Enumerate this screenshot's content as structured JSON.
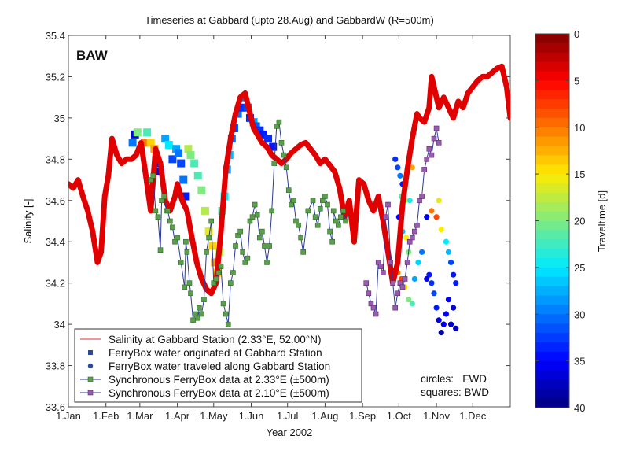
{
  "chart_data": {
    "type": "line",
    "title": "Timeseries at Gabbard (upto 28.Aug) and GabbardW (R=500m)",
    "xlabel": "Year 2002",
    "ylabel": "Salinity [-]",
    "panel_label": "BAW",
    "xlim_days": [
      0,
      365
    ],
    "ylim": [
      33.6,
      35.4
    ],
    "x_ticks": [
      {
        "day": 0,
        "label": "1.Jan"
      },
      {
        "day": 31,
        "label": "1.Feb"
      },
      {
        "day": 59,
        "label": "1.Mar"
      },
      {
        "day": 90,
        "label": "1.Apr"
      },
      {
        "day": 120,
        "label": "1.May"
      },
      {
        "day": 151,
        "label": "1.Jun"
      },
      {
        "day": 181,
        "label": "1.Jul"
      },
      {
        "day": 212,
        "label": "1.Aug"
      },
      {
        "day": 243,
        "label": "1.Sep"
      },
      {
        "day": 273,
        "label": "1.Oct"
      },
      {
        "day": 304,
        "label": "1.Nov"
      },
      {
        "day": 334,
        "label": "1.Dec"
      }
    ],
    "y_ticks": [
      "33.6",
      "33.8",
      "34",
      "34.2",
      "34.4",
      "34.6",
      "34.8",
      "35",
      "35.2",
      "35.4"
    ],
    "grid": false,
    "legend_position": "bottom-left",
    "colorbar": {
      "label": "Traveltime [d]",
      "range": [
        0,
        40
      ],
      "ticks": [
        "0",
        "5",
        "10",
        "15",
        "20",
        "25",
        "30",
        "35",
        "40"
      ],
      "colormap": "jet-reversed"
    },
    "annotations": [
      "circles:   FWD",
      "squares: BWD"
    ],
    "series": [
      {
        "name": "Salinity at Gabbard Station (2.33°E, 52.00°N)",
        "color": "#e00000",
        "style": "thick-line",
        "x": [
          0,
          4,
          8,
          12,
          16,
          20,
          24,
          27,
          30,
          33,
          36,
          40,
          44,
          48,
          52,
          56,
          60,
          64,
          68,
          72,
          76,
          80,
          84,
          88,
          90,
          94,
          98,
          102,
          106,
          110,
          114,
          118,
          122,
          126,
          130,
          134,
          138,
          142,
          146,
          150,
          153,
          156,
          160,
          164,
          168,
          172,
          176,
          180,
          184,
          188,
          192,
          196,
          200,
          204,
          208,
          212,
          216,
          220,
          224,
          228,
          232,
          236,
          240,
          244,
          248,
          252,
          256,
          260,
          264,
          268,
          272,
          276,
          280,
          284,
          288,
          290,
          294,
          298,
          300,
          304,
          306,
          310,
          314,
          318,
          322,
          326,
          330,
          334,
          338,
          342,
          346,
          350,
          354,
          358,
          362,
          365
        ],
        "y": [
          34.68,
          34.66,
          34.7,
          34.62,
          34.55,
          34.45,
          34.3,
          34.35,
          34.62,
          34.72,
          34.9,
          34.82,
          34.78,
          34.8,
          34.8,
          34.82,
          34.88,
          34.72,
          34.55,
          34.85,
          34.78,
          34.6,
          34.55,
          34.62,
          34.68,
          34.6,
          34.55,
          34.42,
          34.3,
          34.22,
          34.17,
          34.15,
          34.2,
          34.45,
          34.75,
          34.9,
          35.02,
          35.1,
          35.12,
          35.02,
          34.95,
          34.92,
          34.88,
          34.86,
          34.82,
          34.8,
          34.78,
          34.8,
          34.83,
          34.85,
          34.87,
          34.88,
          34.85,
          34.82,
          34.78,
          34.8,
          34.77,
          34.74,
          34.66,
          34.52,
          34.6,
          34.4,
          34.7,
          34.68,
          34.6,
          34.55,
          34.62,
          34.5,
          34.35,
          34.2,
          34.3,
          34.58,
          34.75,
          34.9,
          35.02,
          35.0,
          34.98,
          35.05,
          35.2,
          35.1,
          35.05,
          35.1,
          35.05,
          35.0,
          35.08,
          35.05,
          35.12,
          35.15,
          35.18,
          35.2,
          35.2,
          35.22,
          35.24,
          35.25,
          35.15,
          35.0
        ]
      },
      {
        "name": "FerryBox water originated at Gabbard Station",
        "marker": "square",
        "color_by": "traveltime",
        "points": [
          [
            53,
            34.88,
            30
          ],
          [
            55,
            34.92,
            35
          ],
          [
            57,
            34.93,
            20
          ],
          [
            63,
            34.88,
            10
          ],
          [
            65,
            34.93,
            22
          ],
          [
            68,
            34.88,
            14
          ],
          [
            71,
            34.85,
            12
          ],
          [
            74,
            34.78,
            34
          ],
          [
            76,
            34.74,
            36
          ],
          [
            80,
            34.9,
            28
          ],
          [
            83,
            34.87,
            25
          ],
          [
            86,
            34.8,
            32
          ],
          [
            89,
            34.85,
            28
          ],
          [
            91,
            34.83,
            30
          ],
          [
            93,
            34.78,
            32
          ],
          [
            95,
            34.7,
            30
          ],
          [
            97,
            34.62,
            34
          ],
          [
            99,
            34.85,
            18
          ],
          [
            101,
            34.82,
            20
          ],
          [
            104,
            34.78,
            22
          ],
          [
            107,
            34.72,
            22
          ],
          [
            110,
            34.65,
            20
          ],
          [
            113,
            34.55,
            18
          ],
          [
            116,
            34.45,
            16
          ],
          [
            119,
            34.38,
            14
          ],
          [
            121,
            34.3,
            12
          ],
          [
            123,
            34.25,
            15
          ],
          [
            125,
            34.35,
            18
          ],
          [
            127,
            34.55,
            22
          ],
          [
            129,
            34.62,
            25
          ],
          [
            131,
            34.75,
            28
          ],
          [
            133,
            34.82,
            27
          ],
          [
            135,
            34.9,
            30
          ],
          [
            137,
            34.95,
            32
          ],
          [
            140,
            35.02,
            30
          ],
          [
            142,
            35.05,
            33
          ],
          [
            145,
            35.1,
            30
          ],
          [
            148,
            35.05,
            32
          ],
          [
            150,
            35.0,
            33
          ],
          [
            153,
            34.98,
            28
          ],
          [
            155,
            34.96,
            31
          ],
          [
            158,
            34.94,
            33
          ],
          [
            161,
            34.92,
            34
          ],
          [
            165,
            34.9,
            33
          ],
          [
            169,
            34.86,
            34
          ],
          [
            200,
            33.9,
            32
          ],
          [
            202,
            33.8,
            33
          ],
          [
            204,
            33.78,
            32
          ],
          [
            206,
            33.65,
            33
          ]
        ]
      },
      {
        "name": "FerryBox water traveled along Gabbard Station",
        "marker": "circle",
        "color_by": "traveltime",
        "points": [
          [
            270,
            34.8,
            33
          ],
          [
            272,
            34.76,
            32
          ],
          [
            274,
            34.72,
            30
          ],
          [
            276,
            34.68,
            34
          ],
          [
            275,
            34.62,
            22
          ],
          [
            278,
            34.6,
            16
          ],
          [
            282,
            34.6,
            24
          ],
          [
            284,
            34.76,
            12
          ],
          [
            273,
            34.52,
            35
          ],
          [
            276,
            34.45,
            27
          ],
          [
            279,
            34.42,
            15
          ],
          [
            281,
            34.35,
            20
          ],
          [
            272,
            34.25,
            10
          ],
          [
            275,
            34.22,
            8
          ],
          [
            278,
            34.18,
            15
          ],
          [
            281,
            34.12,
            20
          ],
          [
            284,
            34.1,
            22
          ],
          [
            286,
            34.22,
            28
          ],
          [
            289,
            34.3,
            26
          ],
          [
            292,
            34.35,
            30
          ],
          [
            296,
            34.52,
            36
          ],
          [
            300,
            34.55,
            10
          ],
          [
            304,
            34.52,
            8
          ],
          [
            306,
            34.6,
            16
          ],
          [
            308,
            34.46,
            15
          ],
          [
            312,
            34.4,
            25
          ],
          [
            314,
            34.35,
            27
          ],
          [
            316,
            34.3,
            32
          ],
          [
            318,
            34.24,
            34
          ],
          [
            320,
            34.2,
            34
          ],
          [
            314,
            34.12,
            35
          ],
          [
            312,
            34.05,
            35
          ],
          [
            310,
            34.0,
            36
          ],
          [
            308,
            33.96,
            38
          ],
          [
            306,
            34.02,
            36
          ],
          [
            304,
            34.08,
            34
          ],
          [
            302,
            34.15,
            32
          ],
          [
            300,
            34.2,
            33
          ],
          [
            298,
            34.24,
            34
          ],
          [
            296,
            34.22,
            36
          ],
          [
            316,
            34.0,
            37
          ],
          [
            318,
            34.08,
            36
          ],
          [
            320,
            33.98,
            38
          ]
        ]
      },
      {
        "name": "Synchronous FerryBox data at 2.33°E (±500m)",
        "color": "#2a3a9a",
        "marker_color": "#5aa04a",
        "marker": "square",
        "x": [
          68,
          70,
          72,
          74,
          76,
          77,
          79,
          81,
          82,
          84,
          86,
          88,
          90,
          93,
          96,
          97,
          98,
          100,
          101,
          103,
          105,
          107,
          108,
          110,
          112,
          114,
          116,
          118,
          120,
          122,
          124,
          126,
          128,
          130,
          132,
          134,
          136,
          138,
          140,
          142,
          144,
          146,
          148,
          150,
          152,
          154,
          156,
          158,
          160,
          162,
          164,
          166,
          168,
          170,
          172,
          174,
          176,
          178,
          180,
          182,
          184,
          186,
          188,
          190,
          192,
          194,
          198,
          202,
          204,
          206,
          208,
          210,
          212,
          214,
          216,
          218,
          219,
          221,
          223,
          225,
          227,
          229
        ],
        "y": [
          34.7,
          34.72,
          34.55,
          34.52,
          34.36,
          34.6,
          34.62,
          34.55,
          34.55,
          34.5,
          34.47,
          34.4,
          34.42,
          34.3,
          34.18,
          34.4,
          34.35,
          34.2,
          34.15,
          34.02,
          34.05,
          34.03,
          34.08,
          34.05,
          34.12,
          34.35,
          34.42,
          34.5,
          34.2,
          34.22,
          34.25,
          34.28,
          34.1,
          34.05,
          34.0,
          34.2,
          34.25,
          34.38,
          34.43,
          34.45,
          34.35,
          34.3,
          34.32,
          34.5,
          34.52,
          34.58,
          34.53,
          34.42,
          34.45,
          34.38,
          34.3,
          34.38,
          34.55,
          34.78,
          34.96,
          34.98,
          34.88,
          34.82,
          34.76,
          34.65,
          34.58,
          34.6,
          34.5,
          34.48,
          34.42,
          34.35,
          34.55,
          34.6,
          34.52,
          34.48,
          34.56,
          34.6,
          34.62,
          34.58,
          34.45,
          34.4,
          34.55,
          34.5,
          34.48,
          34.52,
          34.55,
          34.5
        ]
      },
      {
        "name": "Synchronous FerryBox data at 2.10°E (±500m)",
        "color": "#2a3a9a",
        "marker_color": "#9a5ab0",
        "marker": "square",
        "x": [
          246,
          248,
          250,
          252,
          254,
          256,
          258,
          260,
          262,
          264,
          266,
          268,
          270,
          272,
          274,
          276,
          278,
          280,
          282,
          284,
          286,
          288,
          290,
          292,
          294,
          296,
          298,
          300,
          302,
          304,
          306
        ],
        "y": [
          34.2,
          34.15,
          34.1,
          34.08,
          34.05,
          34.3,
          34.28,
          34.25,
          34.52,
          34.58,
          34.3,
          34.2,
          34.08,
          34.15,
          34.2,
          34.18,
          34.22,
          34.3,
          34.4,
          34.42,
          34.45,
          34.48,
          34.6,
          34.62,
          34.75,
          34.8,
          34.85,
          34.82,
          34.9,
          34.95,
          34.88
        ]
      }
    ]
  }
}
